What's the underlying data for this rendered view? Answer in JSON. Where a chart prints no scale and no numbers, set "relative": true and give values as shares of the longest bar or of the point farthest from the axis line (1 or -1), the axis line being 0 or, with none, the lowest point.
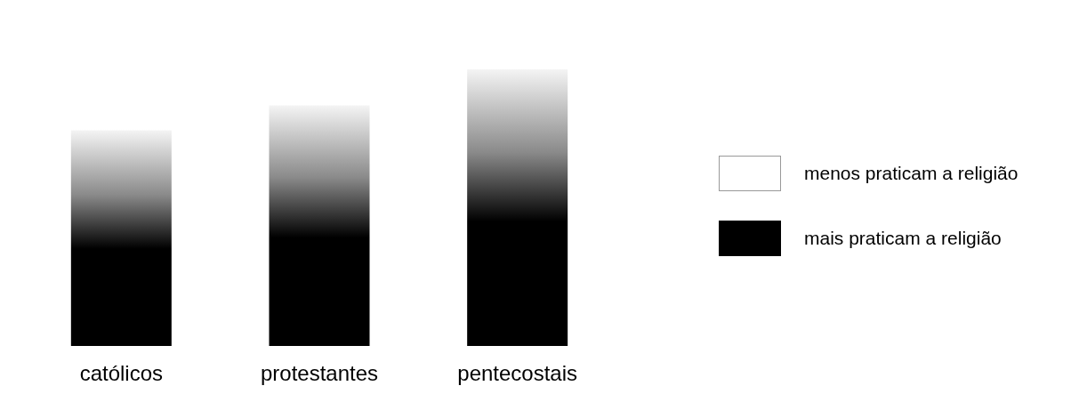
{
  "chart_data": {
    "type": "bar",
    "relative": true,
    "categories": [
      "católicos",
      "protestantes",
      "pentecostais"
    ],
    "series": [
      {
        "color": "#000000",
        "values": [
          0.78,
          0.87,
          1
        ]
      }
    ],
    "annotations": [
      "menos praticam a religião",
      "mais praticam a religião"
    ]
  }
}
